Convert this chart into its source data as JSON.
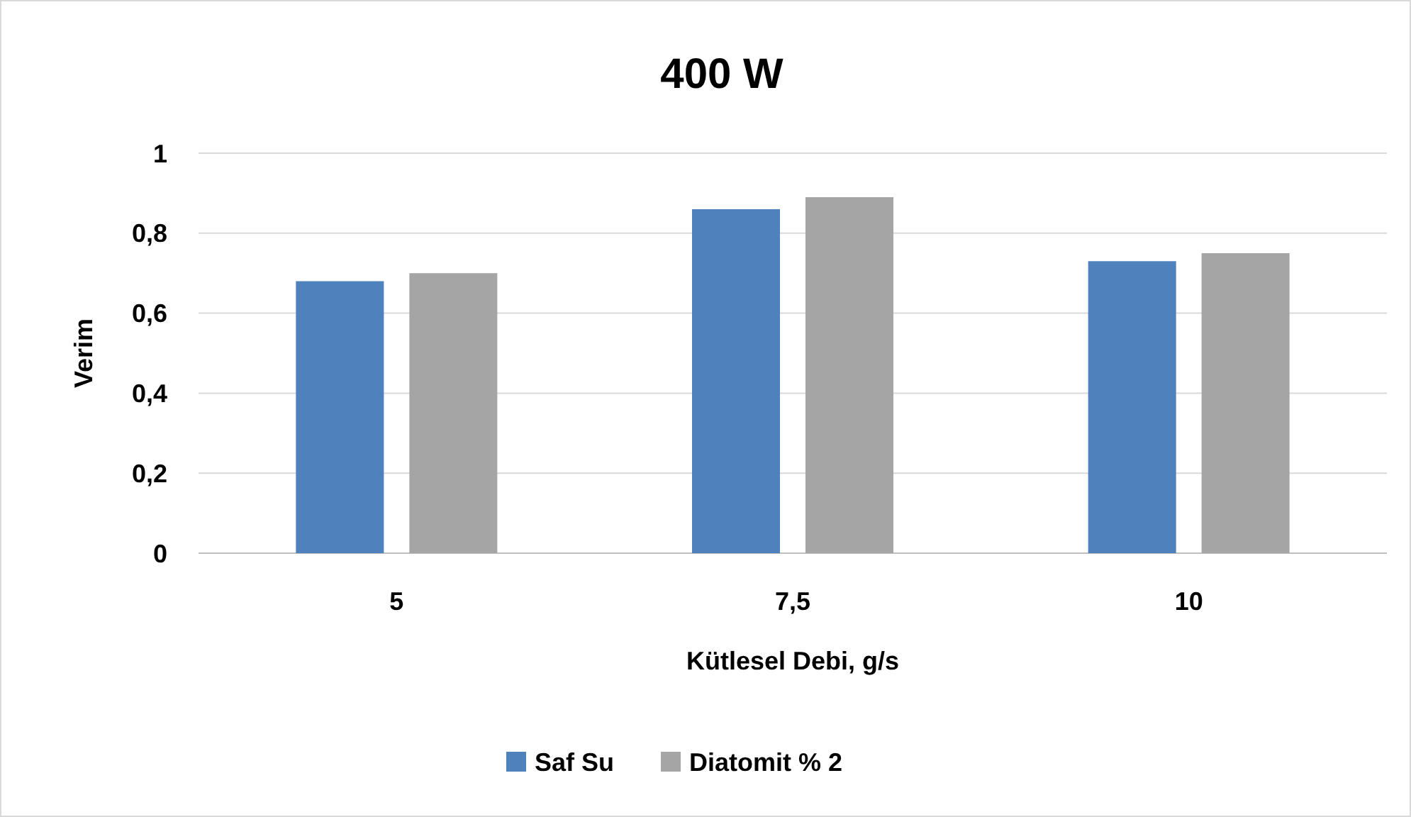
{
  "chart_data": {
    "type": "bar",
    "title": "400 W",
    "xlabel": "Kütlesel Debi, g/s",
    "ylabel": "Verim",
    "categories": [
      "5",
      "7,5",
      "10"
    ],
    "series": [
      {
        "name": "Saf Su",
        "color": "#4f81bd",
        "values": [
          0.68,
          0.86,
          0.73
        ]
      },
      {
        "name": "Diatomit % 2",
        "color": "#a5a5a5",
        "values": [
          0.7,
          0.89,
          0.75
        ]
      }
    ],
    "ylim": [
      0,
      1
    ],
    "yticks": [
      0,
      {
        "value": 0.2,
        "label": "0,2"
      },
      {
        "value": 0.4,
        "label": "0,4"
      },
      {
        "value": 0.6,
        "label": "0,6"
      },
      {
        "value": 0.8,
        "label": "0,8"
      },
      1
    ],
    "grid": "y",
    "legend": "bottom"
  }
}
